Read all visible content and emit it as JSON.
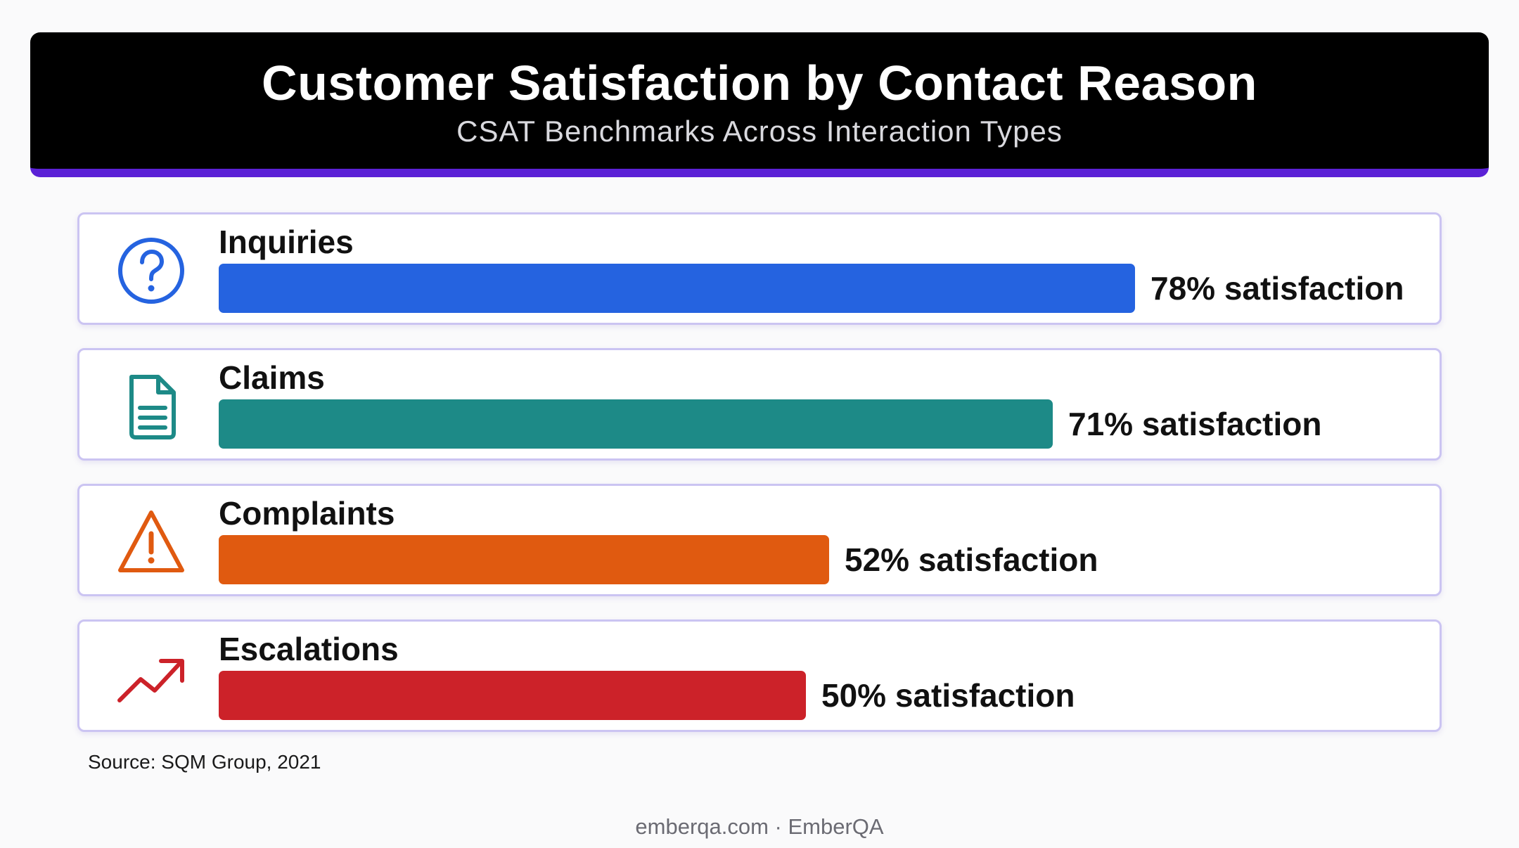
{
  "header": {
    "title": "Customer Satisfaction by Contact Reason",
    "subtitle": "CSAT Benchmarks Across Interaction Types"
  },
  "chart_data": {
    "type": "bar",
    "orientation": "horizontal",
    "title": "Customer Satisfaction by Contact Reason",
    "subtitle": "CSAT Benchmarks Across Interaction Types",
    "categories": [
      "Inquiries",
      "Claims",
      "Complaints",
      "Escalations"
    ],
    "values": [
      78,
      71,
      52,
      50
    ],
    "value_labels": [
      "78% satisfaction",
      "71% satisfaction",
      "52% satisfaction",
      "50% satisfaction"
    ],
    "colors": [
      "#2563e0",
      "#1d8a87",
      "#e05a10",
      "#cc2229"
    ],
    "icons": [
      "question-circle-icon",
      "document-icon",
      "warning-triangle-icon",
      "trending-up-icon"
    ],
    "xlim": [
      0,
      100
    ],
    "grid": false,
    "legend": "none"
  },
  "source": "Source: SQM Group, 2021",
  "footer": "emberqa.com · EmberQA"
}
